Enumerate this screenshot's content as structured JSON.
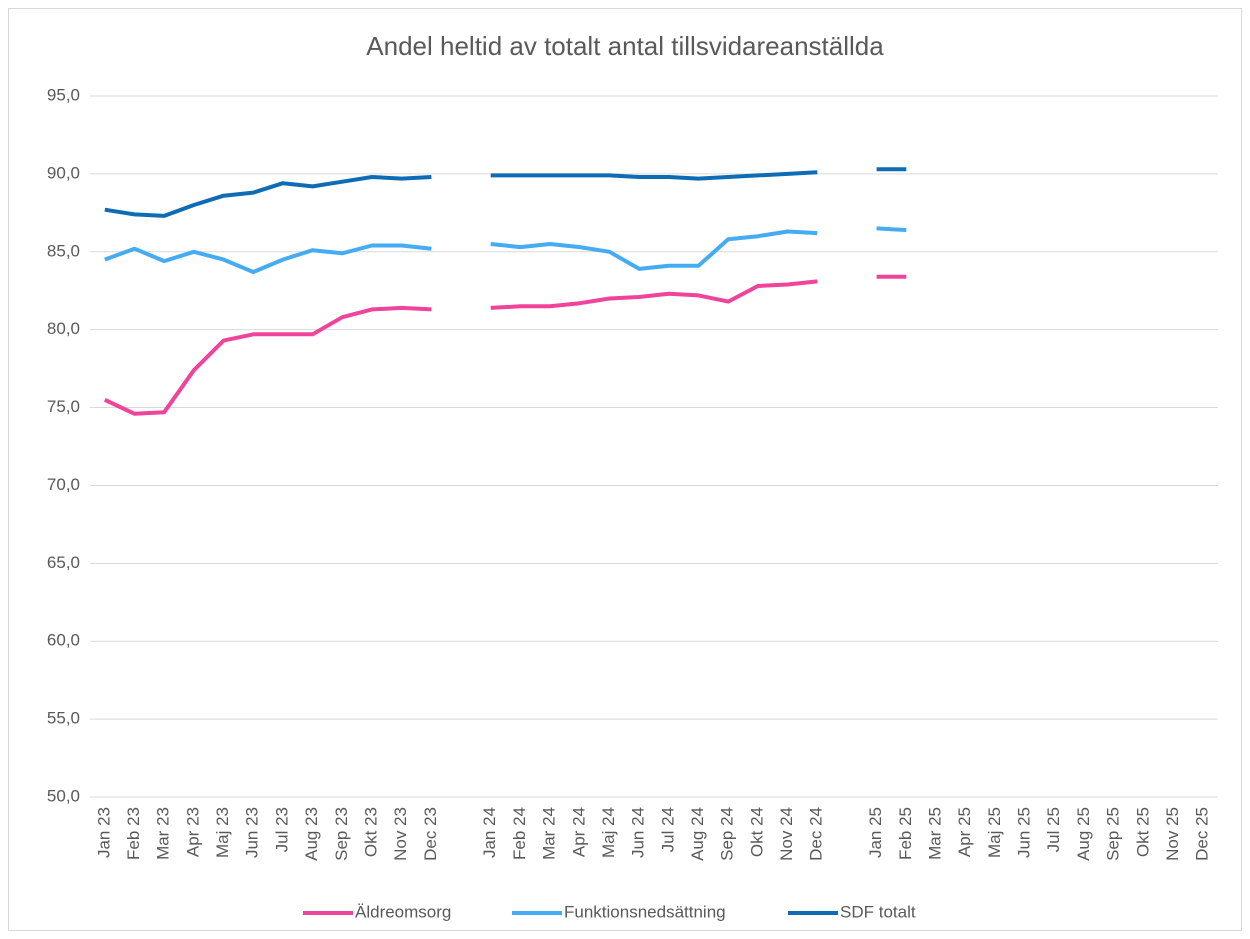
{
  "chart_data": {
    "type": "line",
    "title": "Andel heltid av totalt antal tillsvidareanställda",
    "categories": [
      "Jan 23",
      "Feb 23",
      "Mar 23",
      "Apr 23",
      "Maj 23",
      "Jun 23",
      "Jul 23",
      "Aug 23",
      "Sep 23",
      "Okt 23",
      "Nov 23",
      "Dec 23",
      null,
      "Jan 24",
      "Feb 24",
      "Mar 24",
      "Apr 24",
      "Maj 24",
      "Jun 24",
      "Jul 24",
      "Aug 24",
      "Sep 24",
      "Okt 24",
      "Nov 24",
      "Dec 24",
      null,
      "Jan 25",
      "Feb 25",
      "Mar 25",
      "Apr 25",
      "Maj 25",
      "Jun 25",
      "Jul 25",
      "Aug 25",
      "Sep 25",
      "Okt 25",
      "Nov 25",
      "Dec 25"
    ],
    "series": [
      {
        "name": "Äldreomsorg",
        "color": "#f0439b",
        "values": [
          75.5,
          74.6,
          74.7,
          77.4,
          79.3,
          79.7,
          79.7,
          79.7,
          80.8,
          81.3,
          81.4,
          81.3,
          null,
          81.4,
          81.5,
          81.5,
          81.7,
          82.0,
          82.1,
          82.3,
          82.2,
          81.8,
          82.8,
          82.9,
          83.1,
          null,
          83.4,
          83.4,
          null,
          null,
          null,
          null,
          null,
          null,
          null,
          null,
          null,
          null
        ]
      },
      {
        "name": "Funktionsnedsättning",
        "color": "#45abf2",
        "values": [
          84.5,
          85.2,
          84.4,
          85.0,
          84.5,
          83.7,
          84.5,
          85.1,
          84.9,
          85.4,
          85.4,
          85.2,
          null,
          85.5,
          85.3,
          85.5,
          85.3,
          85.0,
          83.9,
          84.1,
          84.1,
          85.8,
          86.0,
          86.3,
          86.2,
          null,
          86.5,
          86.4,
          null,
          null,
          null,
          null,
          null,
          null,
          null,
          null,
          null,
          null
        ]
      },
      {
        "name": "SDF totalt",
        "color": "#0e6cb5",
        "values": [
          87.7,
          87.4,
          87.3,
          88.0,
          88.6,
          88.8,
          89.4,
          89.2,
          89.5,
          89.8,
          89.7,
          89.8,
          null,
          89.9,
          89.9,
          89.9,
          89.9,
          89.9,
          89.8,
          89.8,
          89.7,
          89.8,
          89.9,
          90.0,
          90.1,
          null,
          90.3,
          90.3,
          null,
          null,
          null,
          null,
          null,
          null,
          null,
          null,
          null,
          null
        ]
      }
    ],
    "ylim": [
      50,
      95
    ],
    "yticks": [
      {
        "value": 50,
        "label": "50,0"
      },
      {
        "value": 55,
        "label": "55,0"
      },
      {
        "value": 60,
        "label": "60,0"
      },
      {
        "value": 65,
        "label": "65,0"
      },
      {
        "value": 70,
        "label": "70,0"
      },
      {
        "value": 75,
        "label": "75,0"
      },
      {
        "value": 80,
        "label": "80,0"
      },
      {
        "value": 85,
        "label": "85,0"
      },
      {
        "value": 90,
        "label": "90,0"
      },
      {
        "value": 95,
        "label": "95,0"
      }
    ],
    "grid": true,
    "legend": "bottom"
  }
}
